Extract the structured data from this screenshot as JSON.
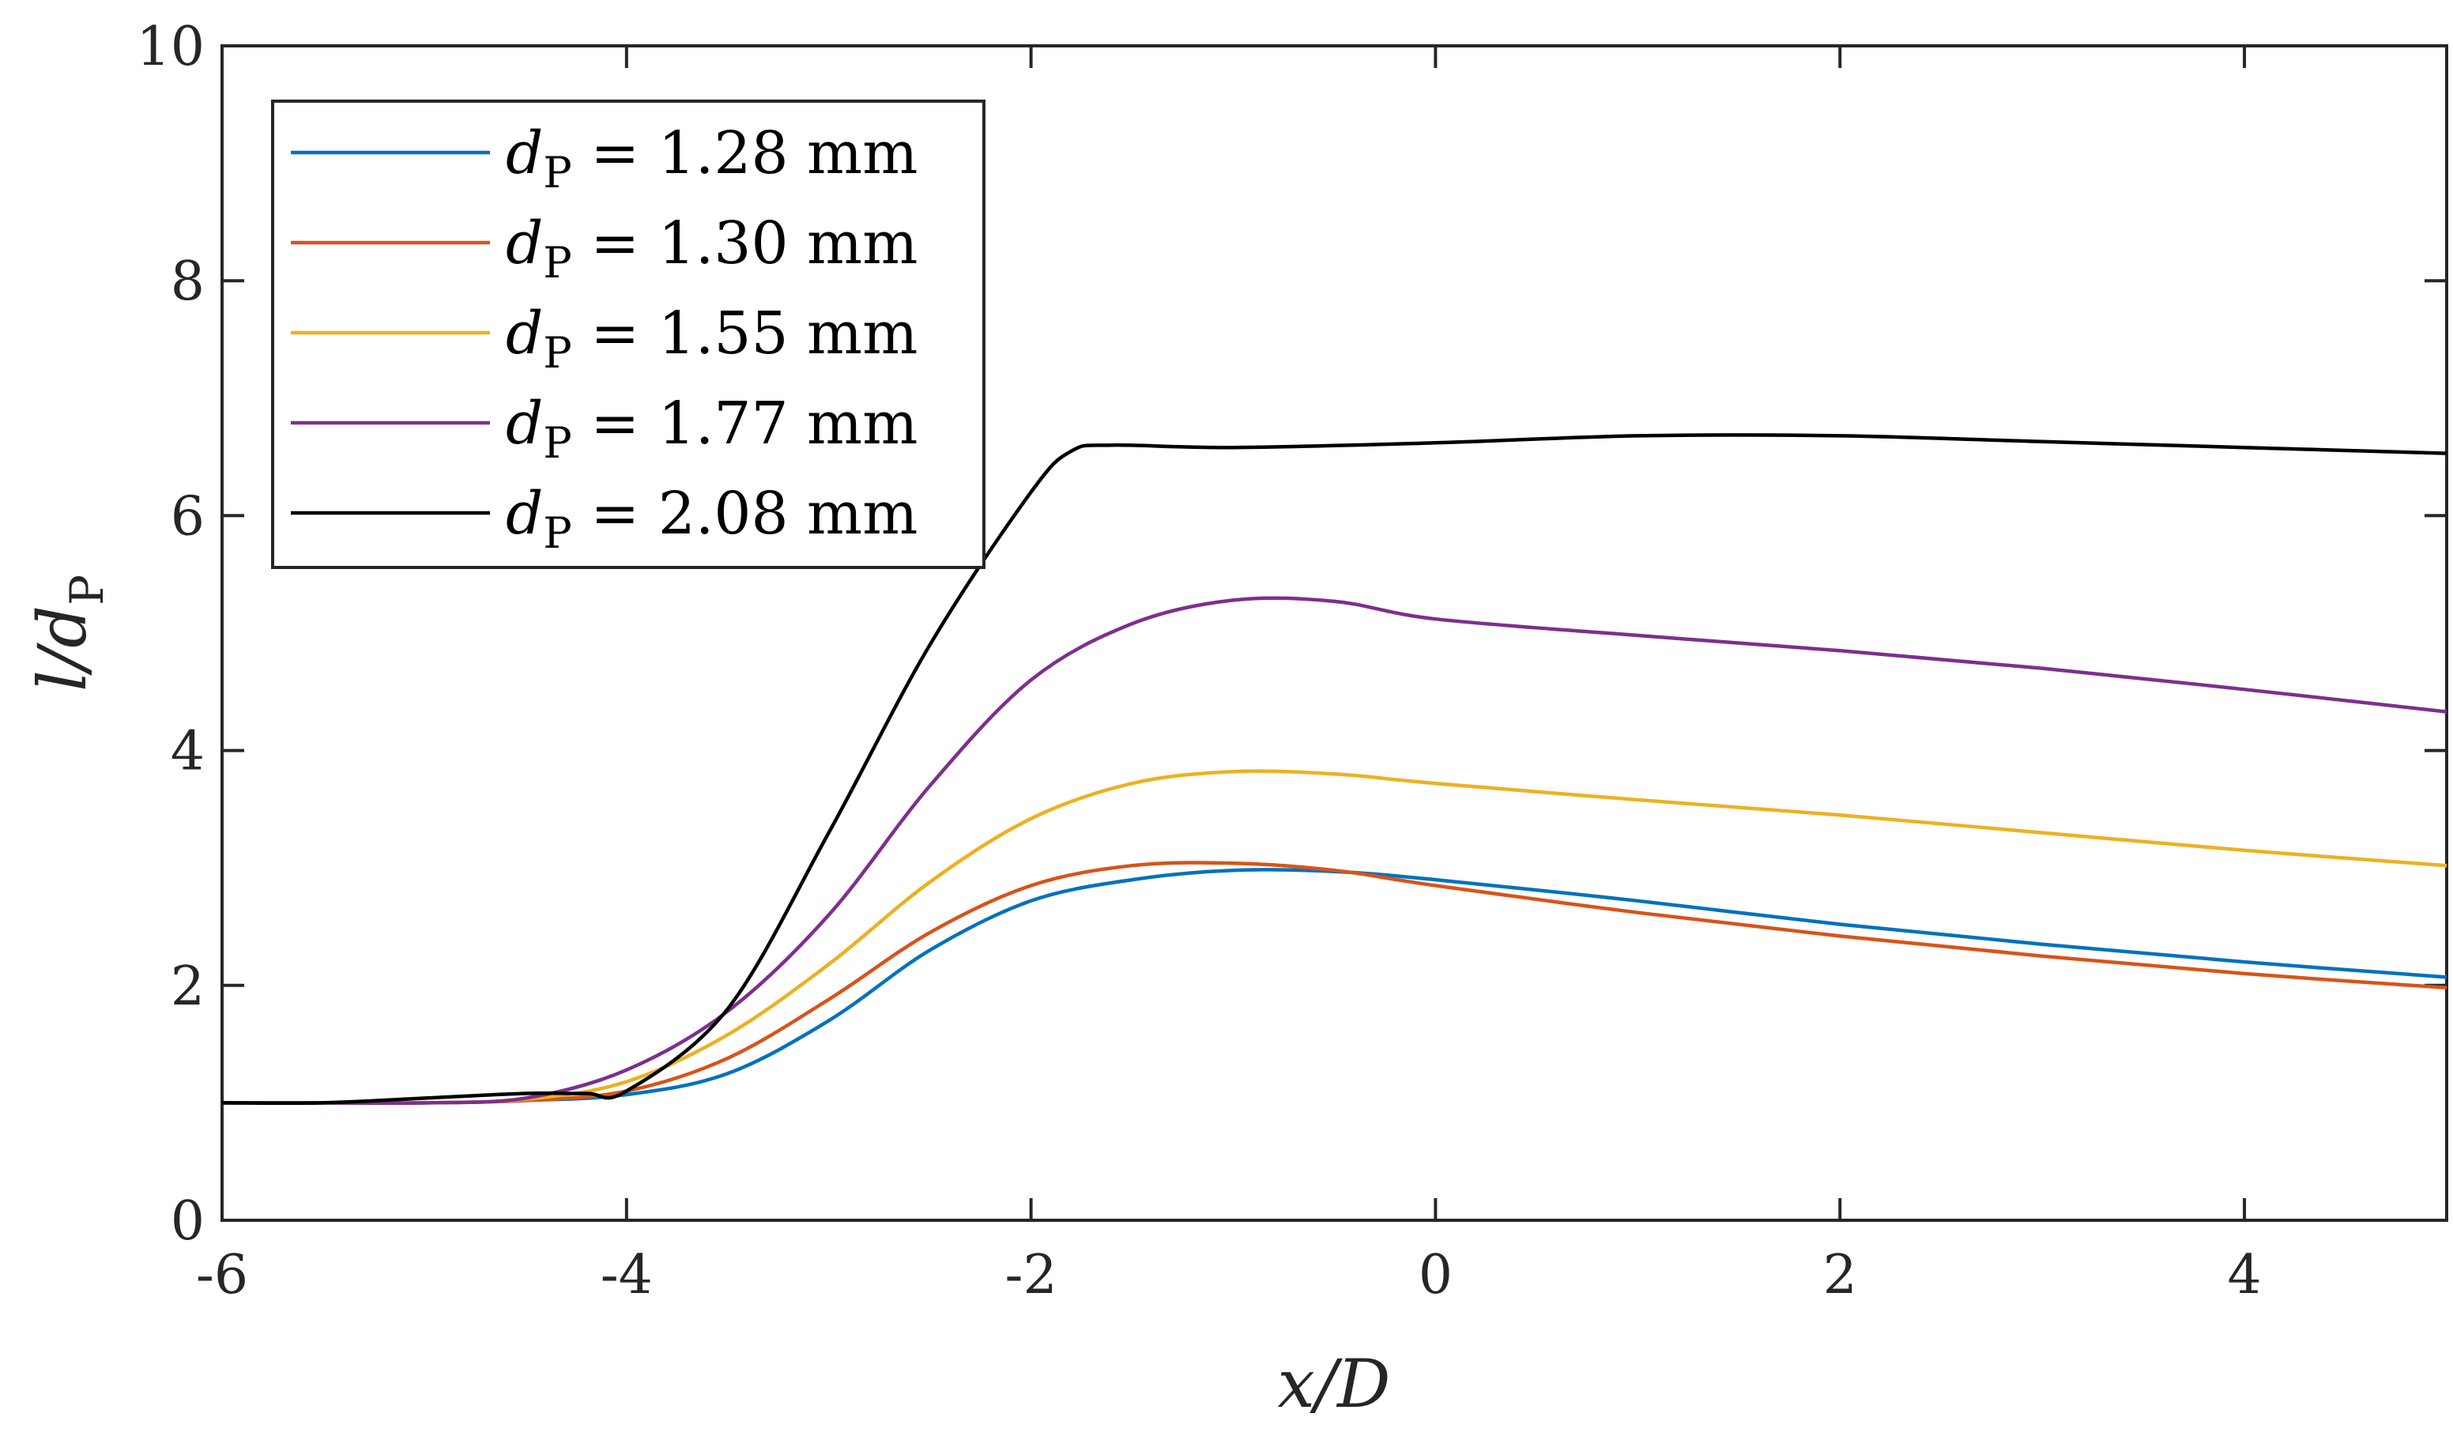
{
  "chart_data": {
    "type": "line",
    "title": "",
    "xlabel": "x/D",
    "ylabel": "l/dP",
    "ylabel_parts": {
      "main": "l/d",
      "subscript": "P"
    },
    "xlim": [
      -6,
      5
    ],
    "ylim": [
      0,
      10
    ],
    "xticks": [
      -6,
      -4,
      -2,
      0,
      2,
      4
    ],
    "xtick_labels": [
      "-6",
      "-4",
      "-2",
      "0",
      "2",
      "4"
    ],
    "yticks": [
      0,
      2,
      4,
      6,
      8,
      10
    ],
    "ytick_labels": [
      "0",
      "2",
      "4",
      "6",
      "8",
      "10"
    ],
    "grid": false,
    "legend_position": "top-left",
    "series": [
      {
        "name": "dP = 1.28 mm",
        "label_var": "d",
        "label_sub": "P",
        "label_rest": " = 1.28 mm",
        "color": "#0072BD",
        "x": [
          -6,
          -5.5,
          -5,
          -4.5,
          -4,
          -3.5,
          -3,
          -2.5,
          -2,
          -1.5,
          -1,
          -0.5,
          0,
          1,
          2,
          3,
          4,
          5
        ],
        "y": [
          1.0,
          1.0,
          1.0,
          1.02,
          1.07,
          1.25,
          1.7,
          2.3,
          2.72,
          2.9,
          2.98,
          2.97,
          2.9,
          2.72,
          2.52,
          2.35,
          2.2,
          2.07
        ]
      },
      {
        "name": "dP = 1.30 mm",
        "label_var": "d",
        "label_sub": "P",
        "label_rest": " = 1.30 mm",
        "color": "#D95319",
        "x": [
          -6,
          -5.5,
          -5,
          -4.5,
          -4,
          -3.5,
          -3,
          -2.5,
          -2,
          -1.5,
          -1,
          -0.5,
          0,
          1,
          2,
          3,
          4,
          5
        ],
        "y": [
          1.0,
          1.0,
          1.0,
          1.02,
          1.1,
          1.38,
          1.88,
          2.45,
          2.85,
          3.02,
          3.04,
          2.98,
          2.85,
          2.62,
          2.42,
          2.25,
          2.1,
          1.98
        ]
      },
      {
        "name": "dP = 1.55 mm",
        "label_var": "d",
        "label_sub": "P",
        "label_rest": " = 1.55 mm",
        "color": "#EDB120",
        "x": [
          -6,
          -5.5,
          -5,
          -4.5,
          -4,
          -3.5,
          -3,
          -2.5,
          -2,
          -1.5,
          -1,
          -0.5,
          0,
          1,
          2,
          3,
          4,
          5
        ],
        "y": [
          1.0,
          1.0,
          1.0,
          1.03,
          1.18,
          1.58,
          2.18,
          2.88,
          3.42,
          3.72,
          3.82,
          3.8,
          3.72,
          3.58,
          3.45,
          3.3,
          3.15,
          3.02
        ]
      },
      {
        "name": "dP = 1.77 mm",
        "label_var": "d",
        "label_sub": "P",
        "label_rest": " = 1.77 mm",
        "color": "#7E2F8E",
        "x": [
          -6,
          -5.5,
          -5,
          -4.5,
          -4,
          -3.5,
          -3,
          -2.5,
          -2,
          -1.5,
          -1,
          -0.5,
          0,
          1,
          2,
          3,
          4,
          5
        ],
        "y": [
          1.0,
          1.0,
          1.0,
          1.04,
          1.28,
          1.78,
          2.6,
          3.7,
          4.6,
          5.08,
          5.28,
          5.27,
          5.12,
          4.98,
          4.85,
          4.7,
          4.52,
          4.33
        ]
      },
      {
        "name": "dP = 2.08 mm",
        "label_var": "d",
        "label_sub": "P",
        "label_rest": " = 2.08 mm",
        "color": "#000000",
        "x": [
          -6,
          -5.5,
          -5,
          -4.5,
          -4.2,
          -4,
          -3.5,
          -3,
          -2.5,
          -2,
          -1.8,
          -1.6,
          -1,
          0,
          1,
          2,
          3,
          4,
          5
        ],
        "y": [
          1.0,
          1.0,
          1.04,
          1.08,
          1.08,
          1.1,
          1.8,
          3.3,
          4.9,
          6.2,
          6.55,
          6.6,
          6.58,
          6.62,
          6.68,
          6.68,
          6.63,
          6.58,
          6.53
        ]
      }
    ]
  }
}
